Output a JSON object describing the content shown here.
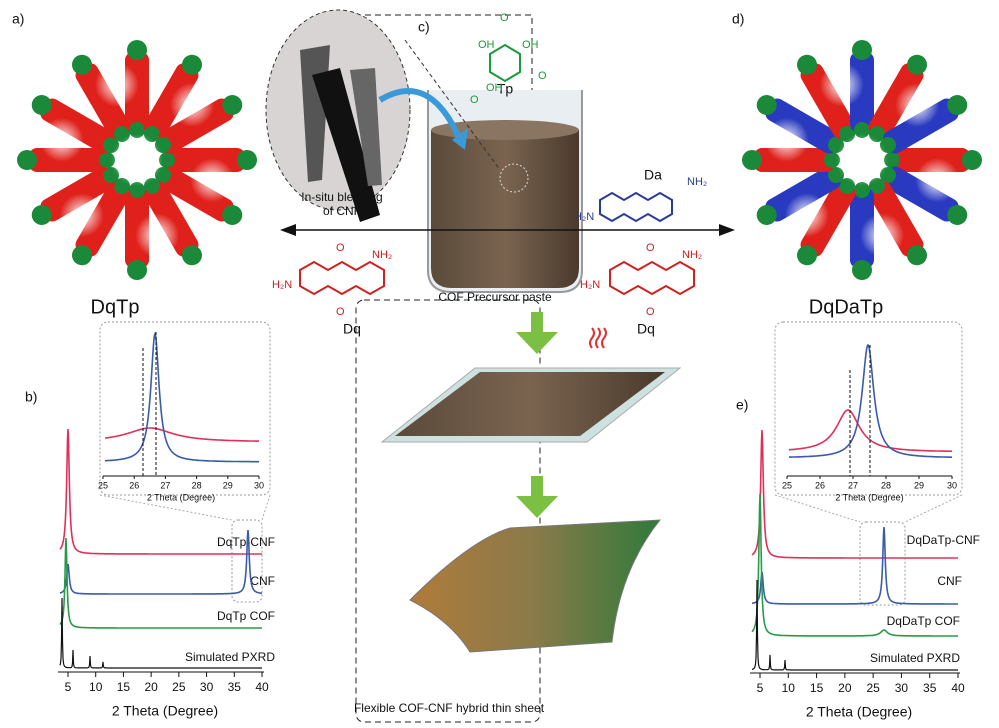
{
  "panels": {
    "a": "a)",
    "b": "b)",
    "c": "c)",
    "d": "d)",
    "e": "e)"
  },
  "structures": {
    "left": "DqTp",
    "right": "DqDaTp"
  },
  "scheme": {
    "tp": "Tp",
    "da": "Da",
    "dq_left": "Dq",
    "dq_right": "Dq",
    "blending_1": "In-situ blending",
    "blending_2": "of CNF",
    "paste": "COF Precursor paste",
    "sheet": "Flexible COF-CNF hybrid thin sheet",
    "chem": {
      "oh": "OH",
      "o": "O",
      "nh2": "NH₂",
      "h2n": "H₂N"
    }
  },
  "plot_b": {
    "x_label": "2 Theta (Degree)",
    "xticks": [
      5,
      10,
      15,
      20,
      25,
      30,
      35,
      40
    ],
    "traces": [
      "DqTp-CNF",
      "CNF",
      "DqTp COF",
      "Simulated PXRD"
    ],
    "inset": {
      "x_label": "2 Theta (Degree)",
      "xticks": [
        25,
        26,
        27,
        28,
        29,
        30
      ]
    }
  },
  "plot_e": {
    "x_label": "2 Theta (Degree)",
    "xticks": [
      5,
      10,
      15,
      20,
      25,
      30,
      35,
      40
    ],
    "traces": [
      "DqDaTp-CNF",
      "CNF",
      "DqDaTp COF",
      "Simulated PXRD"
    ],
    "inset": {
      "x_label": "2 Theta (Degree)",
      "xticks": [
        25,
        26,
        27,
        28,
        29,
        30
      ]
    }
  }
}
